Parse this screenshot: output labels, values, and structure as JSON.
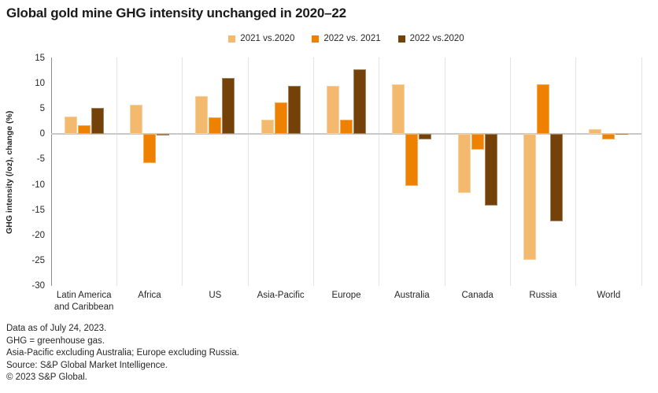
{
  "title": "Global gold mine GHG intensity unchanged in 2020–22",
  "chart_data": {
    "type": "bar",
    "title": "Global gold mine GHG intensity unchanged in 2020–22",
    "xlabel": "",
    "ylabel": "GHG intensity (/oz), change (%)",
    "ylim": [
      -30,
      15
    ],
    "ytick_step": 5,
    "grid": "vertical category separators only, zero baseline shown",
    "legend_position": "top-center",
    "categories": [
      "Latin America\nand Caribbean",
      "Africa",
      "US",
      "Asia-Pacific",
      "Europe",
      "Australia",
      "Canada",
      "Russia",
      "World"
    ],
    "series": [
      {
        "name": "2021 vs.2020",
        "color": "#F3B96E",
        "values": [
          3.4,
          5.8,
          7.6,
          2.9,
          9.6,
          9.8,
          -11.6,
          -24.9,
          1.0
        ]
      },
      {
        "name": "2022 vs. 2021",
        "color": "#EE8200",
        "values": [
          1.7,
          -5.7,
          3.3,
          6.3,
          2.8,
          -10.2,
          -3.1,
          9.8,
          -1.1
        ]
      },
      {
        "name": "2022 vs.2020",
        "color": "#744108",
        "values": [
          5.2,
          -0.2,
          11.1,
          9.5,
          12.8,
          -1.1,
          -14.1,
          -17.2,
          -0.1
        ]
      }
    ]
  },
  "footnotes": [
    "Data as of July 24, 2023.",
    "GHG = greenhouse gas.",
    "Asia-Pacific excluding Australia; Europe excluding Russia.",
    "Source: S&P Global Market Intelligence.",
    "© 2023 S&P Global."
  ],
  "colors": {
    "axis_line": "#8c8c8c",
    "gridline": "#e3e3e3",
    "zero_line": "#c9c9c9",
    "text": "#262626"
  }
}
